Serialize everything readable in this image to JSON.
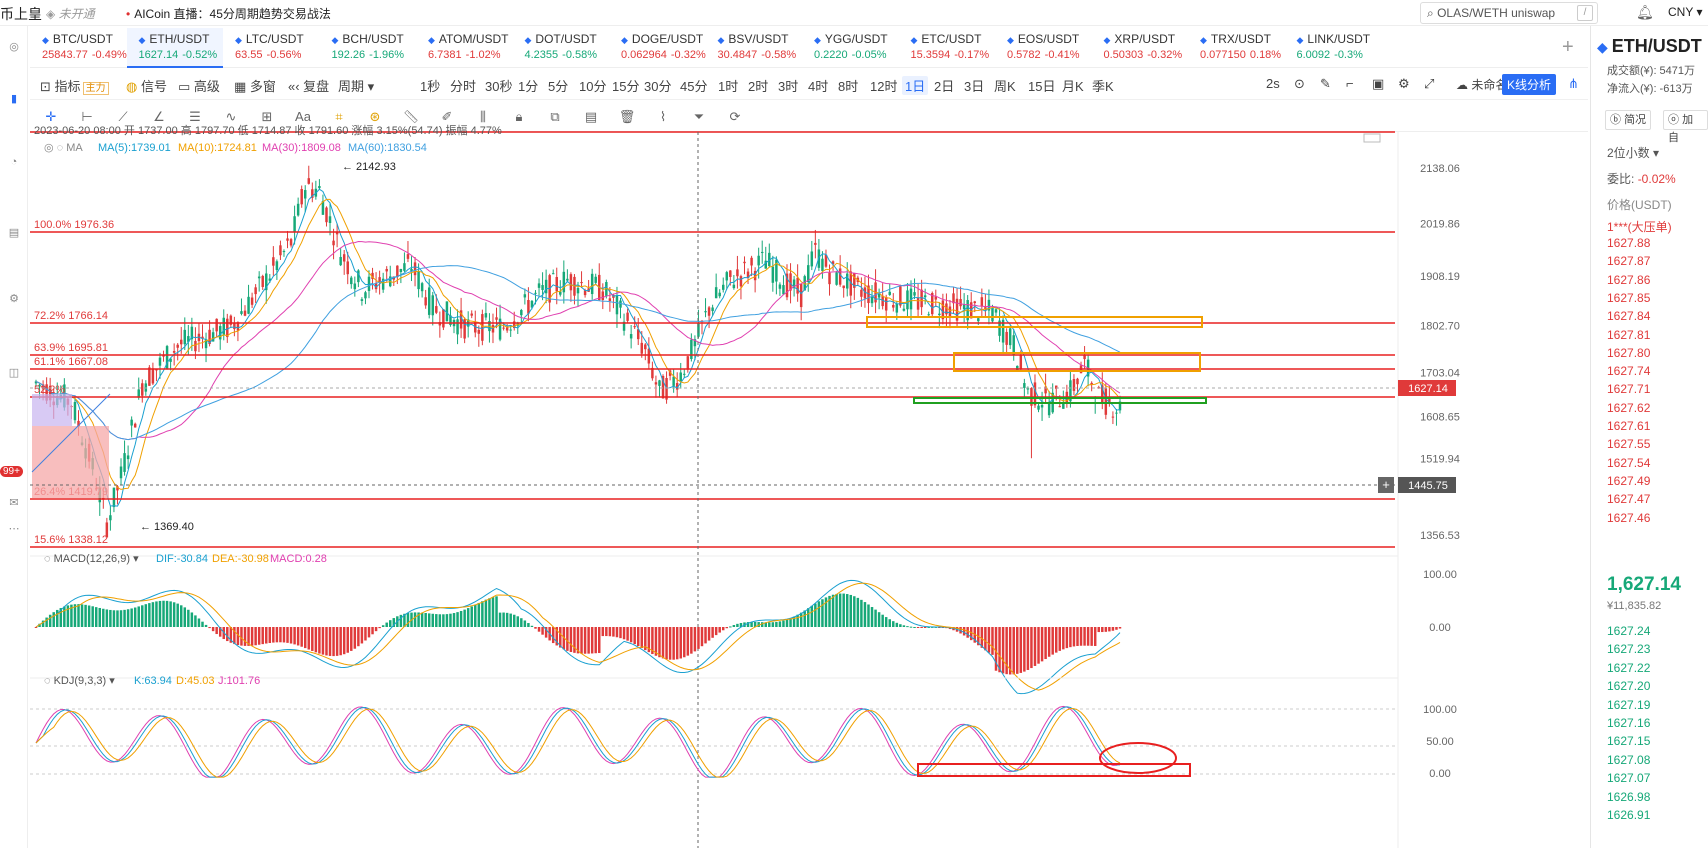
{
  "topbar": {
    "brand": "币上皇",
    "status": "未开通",
    "live_text": "AICoin 直播：45分周期趋势交易战法",
    "search": "OLAS/WETH uniswap",
    "search_key": "/",
    "currency": "CNY"
  },
  "leftbar": {
    "badge": "99+"
  },
  "tickers": [
    {
      "sym": "BTC/USDT",
      "price": "25843.77",
      "chg": "-0.49%",
      "dir": "down"
    },
    {
      "sym": "ETH/USDT",
      "price": "1627.14",
      "chg": "-0.52%",
      "dir": "up",
      "active": true
    },
    {
      "sym": "LTC/USDT",
      "price": "63.55",
      "chg": "-0.56%",
      "dir": "down"
    },
    {
      "sym": "BCH/USDT",
      "price": "192.26",
      "chg": "-1.96%",
      "dir": "up"
    },
    {
      "sym": "ATOM/USDT",
      "price": "6.7381",
      "chg": "-1.02%",
      "dir": "down"
    },
    {
      "sym": "DOT/USDT",
      "price": "4.2355",
      "chg": "-0.58%",
      "dir": "up"
    },
    {
      "sym": "DOGE/USDT",
      "price": "0.062964",
      "chg": "-0.32%",
      "dir": "down"
    },
    {
      "sym": "BSV/USDT",
      "price": "30.4847",
      "chg": "-0.58%",
      "dir": "down"
    },
    {
      "sym": "YGG/USDT",
      "price": "0.2220",
      "chg": "-0.05%",
      "dir": "up"
    },
    {
      "sym": "ETC/USDT",
      "price": "15.3594",
      "chg": "-0.17%",
      "dir": "down"
    },
    {
      "sym": "EOS/USDT",
      "price": "0.5782",
      "chg": "-0.41%",
      "dir": "down"
    },
    {
      "sym": "XRP/USDT",
      "price": "0.50303",
      "chg": "-0.32%",
      "dir": "down"
    },
    {
      "sym": "TRX/USDT",
      "price": "0.077150",
      "chg": "0.18%",
      "dir": "down"
    },
    {
      "sym": "LINK/USDT",
      "price": "6.0092",
      "chg": "-0.3%",
      "dir": "up"
    }
  ],
  "toolbar": {
    "indicator": "指标",
    "indicator_tag": "主力",
    "signal": "信号",
    "advanced": "高级",
    "multi": "多窗",
    "replay": "复盘",
    "period": "周期",
    "periods": [
      "1秒",
      "分时",
      "30秒",
      "1分",
      "5分",
      "10分",
      "15分",
      "30分",
      "45分",
      "1时",
      "2时",
      "3时",
      "4时",
      "8时",
      "12时",
      "1日",
      "2日",
      "3日",
      "周K",
      "15日",
      "月K",
      "季K"
    ],
    "selected_period": "1日",
    "refresh": "2s",
    "unnamed": "未命名",
    "kline_analysis": "K线分析"
  },
  "chart": {
    "ohlc_line": "2023-06-20 08:00  开 1737.00  高 1797.70  低 1714.87  收 1791.60  涨幅 3.15%(54.74)  振幅 4.77%",
    "ma_label": "MA",
    "ma5": "MA(5):1739.01",
    "ma10": "MA(10):1724.81",
    "ma30": "MA(30):1809.08",
    "ma60": "MA(60):1830.54",
    "high_marker": "2142.93",
    "low_marker": "1369.40",
    "current_price": "1627.14",
    "crosshair_price": "1445.75",
    "fib_labels": [
      "100.0% 1976.36",
      "72.2% 1766.14",
      "63.9% 1695.81",
      "61.1% 1667.08",
      "52.2%",
      "26.4% 1419.79",
      "15.6% 1338.12"
    ],
    "price_axis": [
      "2138.06",
      "2019.86",
      "1908.19",
      "1802.70",
      "1703.04",
      "1608.65",
      "1519.94",
      "1445.75",
      "1356.53"
    ],
    "macd_label": "MACD(12,26,9)",
    "dif": "DIF:-30.84",
    "dea": "DEA:-30.98",
    "macd": "MACD:0.28",
    "macd_axis": [
      "100.00",
      "0.00"
    ],
    "kdj_label": "KDJ(9,3,3)",
    "k": "K:63.94",
    "d": "D:45.03",
    "j": "J:101.76",
    "kdj_axis": [
      "100.00",
      "50.00",
      "0.00"
    ],
    "colors": {
      "up": "#16a878",
      "down": "#e03a3a",
      "ma5": "#1aa0d0",
      "ma10": "#f0a000",
      "ma30": "#e040b0",
      "ma60": "#40a0e0"
    }
  },
  "rightpanel": {
    "title": "ETH/USDT",
    "volume": "成交额(¥):  5471万",
    "inflow": "净流入(¥):  -613万",
    "tab_overview": "简况",
    "tab_add": "加自",
    "decimals": "2位小数",
    "ratio_label": "委比:",
    "ratio": "-0.02%",
    "price_header": "价格(USDT)",
    "big_order": "1***(大压单)",
    "asks": [
      "1627.88",
      "1627.87",
      "1627.86",
      "1627.85",
      "1627.84",
      "1627.81",
      "1627.80",
      "1627.74",
      "1627.71",
      "1627.62",
      "1627.61",
      "1627.55",
      "1627.54",
      "1627.49",
      "1627.47",
      "1627.46"
    ],
    "last_price": "1,627.14",
    "fiat_price": "¥11,835.82",
    "bids": [
      "1627.24",
      "1627.23",
      "1627.22",
      "1627.20",
      "1627.19",
      "1627.16",
      "1627.15",
      "1627.08",
      "1627.07",
      "1626.98",
      "1626.91"
    ]
  }
}
